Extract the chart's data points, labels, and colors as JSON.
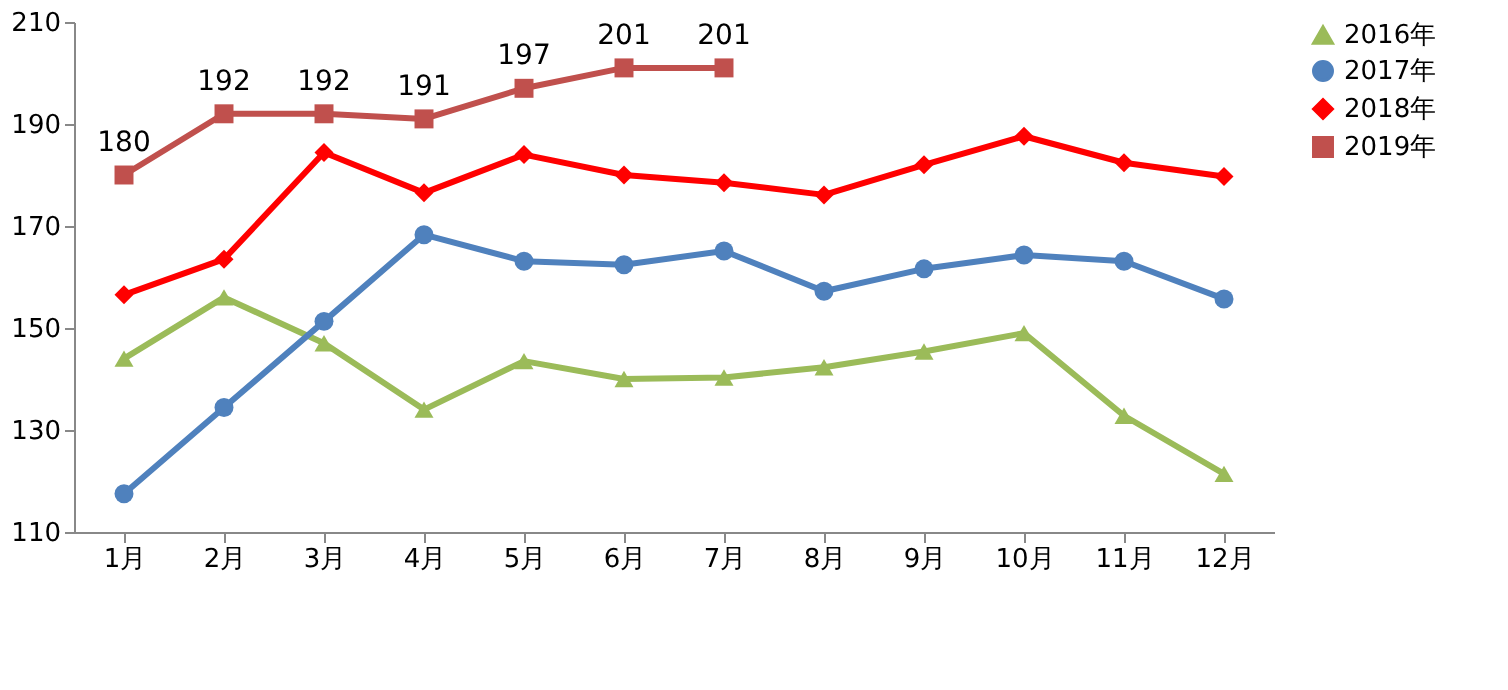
{
  "chart_data": {
    "type": "line",
    "categories": [
      "1月",
      "2月",
      "3月",
      "4月",
      "5月",
      "6月",
      "7月",
      "8月",
      "9月",
      "10月",
      "11月",
      "12月"
    ],
    "ylim": [
      110,
      210
    ],
    "yticks": [
      110,
      130,
      150,
      170,
      190,
      210
    ],
    "grid": false,
    "legend": "right",
    "line_style": "solid",
    "series": [
      {
        "name": "2016年",
        "color": "#9bbb59",
        "marker": "triangle",
        "values": [
          144,
          156,
          147,
          134,
          143.5,
          140,
          140.3,
          142.3,
          145.4,
          149,
          132.8,
          121.4
        ]
      },
      {
        "name": "2017年",
        "color": "#4f81bd",
        "marker": "circle",
        "values": [
          117.5,
          134.4,
          151.3,
          168.3,
          163.1,
          162.4,
          165.1,
          157.2,
          161.6,
          164.3,
          163.1,
          155.7
        ]
      },
      {
        "name": "2018年",
        "color": "#ff0000",
        "marker": "diamond",
        "values": [
          156.5,
          163.5,
          184.4,
          176.5,
          184,
          180,
          178.5,
          176.1,
          182,
          187.6,
          182.4,
          179.7
        ]
      },
      {
        "name": "2019年",
        "color": "#c0504d",
        "marker": "square",
        "values": [
          180,
          192,
          192,
          191,
          197,
          201,
          201,
          null,
          null,
          null,
          null,
          null
        ],
        "value_labels": [
          "180",
          "192",
          "192",
          "191",
          "197",
          "201",
          "201",
          null,
          null,
          null,
          null,
          null
        ]
      }
    ]
  }
}
